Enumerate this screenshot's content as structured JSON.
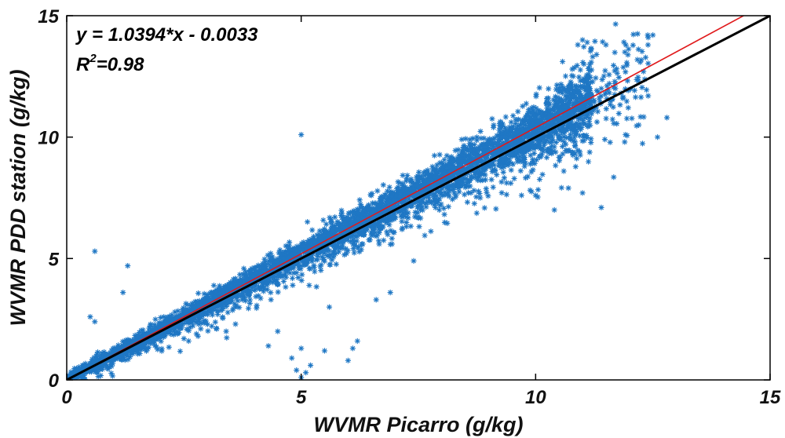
{
  "chart_data": {
    "type": "scatter",
    "xlabel": "WVMR Picarro (g/kg)",
    "ylabel": "WVMR PDD station (g/kg)",
    "xlim": [
      0,
      15
    ],
    "ylim": [
      0,
      15
    ],
    "x_ticks": [
      0,
      5,
      10,
      15
    ],
    "y_ticks": [
      0,
      5,
      10,
      15
    ],
    "x_tick_labels": [
      "0",
      "5",
      "10",
      "15"
    ],
    "y_tick_labels": [
      "0",
      "5",
      "10",
      "15"
    ],
    "grid": false,
    "marker": "asterisk",
    "colors": {
      "points": "#1f77c4",
      "fit_line": "#e0191b",
      "identity_line": "#000000",
      "frame": "#000000"
    },
    "annotations": {
      "equation": "y = 1.0394*x - 0.0033",
      "r2_base": "R",
      "r2_sup": "2",
      "r2_value": "=0.98"
    },
    "lines": [
      {
        "kind": "fit",
        "slope": 1.0394,
        "intercept": -0.0033
      },
      {
        "kind": "identity",
        "slope": 1,
        "intercept": 0
      }
    ],
    "scatter_model": {
      "n_points": 4500,
      "x_range": [
        0,
        12.8
      ],
      "slope": 1.0394,
      "intercept": -0.0033,
      "spread_note": "dense cloud along the fit line with increasing scatter above 10 g/kg"
    },
    "points": [
      [
        0.2,
        0.2
      ],
      [
        0.5,
        0.5
      ],
      [
        0.6,
        5.3
      ],
      [
        1.3,
        4.7
      ],
      [
        1.2,
        3.6
      ],
      [
        0.5,
        2.6
      ],
      [
        0.6,
        2.4
      ],
      [
        2.5,
        1.7
      ],
      [
        2.6,
        1.6
      ],
      [
        2.8,
        1.8
      ],
      [
        3.2,
        2.1
      ],
      [
        3.4,
        2.0
      ],
      [
        3.6,
        2.3
      ],
      [
        4.9,
        0.4
      ],
      [
        5.0,
        0.1
      ],
      [
        5.1,
        0.3
      ],
      [
        5.2,
        0.6
      ],
      [
        4.8,
        0.9
      ],
      [
        5.0,
        1.3
      ],
      [
        5.5,
        1.2
      ],
      [
        6.1,
        1.3
      ],
      [
        6.2,
        1.6
      ],
      [
        6.0,
        0.8
      ],
      [
        4.3,
        1.4
      ],
      [
        4.5,
        2.0
      ],
      [
        5.0,
        10.1
      ],
      [
        7.4,
        4.9
      ],
      [
        6.6,
        3.3
      ],
      [
        6.9,
        3.6
      ],
      [
        5.6,
        3.0
      ],
      [
        9.7,
        7.6
      ],
      [
        10.0,
        7.6
      ],
      [
        10.4,
        7.0
      ],
      [
        10.7,
        7.9
      ],
      [
        11.4,
        7.1
      ],
      [
        11.0,
        7.7
      ],
      [
        11.7,
        12.0
      ],
      [
        11.7,
        12.2
      ],
      [
        11.9,
        9.8
      ],
      [
        12.2,
        10.5
      ],
      [
        12.4,
        11.7
      ],
      [
        12.3,
        12.7
      ],
      [
        12.5,
        14.2
      ],
      [
        12.4,
        14.1
      ],
      [
        12.6,
        10.0
      ],
      [
        12.8,
        10.8
      ],
      [
        11.0,
        14.0
      ],
      [
        11.1,
        13.9
      ],
      [
        10.9,
        13.8
      ],
      [
        11.5,
        13.8
      ],
      [
        11.3,
        13.4
      ],
      [
        9.1,
        10.4
      ],
      [
        8.6,
        9.9
      ],
      [
        8.9,
        9.6
      ],
      [
        9.8,
        10.3
      ],
      [
        10.4,
        9.6
      ],
      [
        10.6,
        8.6
      ]
    ]
  }
}
